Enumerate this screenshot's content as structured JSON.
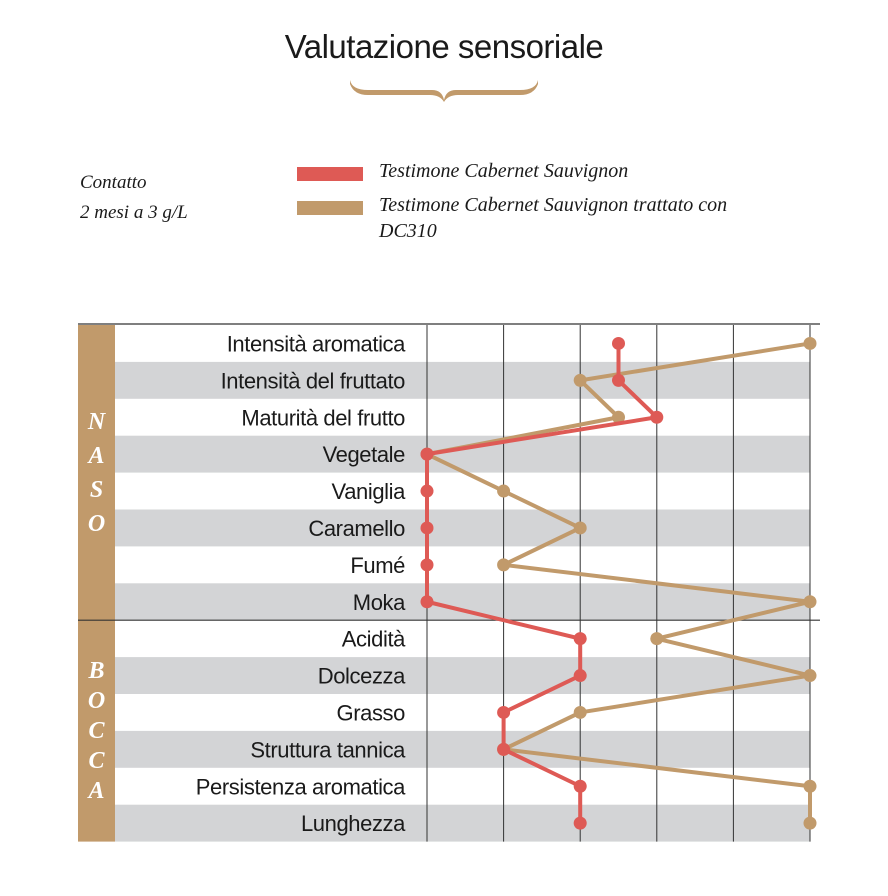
{
  "title": "Valutazione sensoriale",
  "note": [
    "Contatto",
    "2 mesi a 3 g/L"
  ],
  "colors": {
    "control": "#de5a55",
    "treated": "#c19a6b",
    "stripe": "#d3d4d6",
    "side": "#c19a6b"
  },
  "chart_data": {
    "type": "line",
    "orientation": "horizontal",
    "categories": [
      "Intensità aromatica",
      "Intensità del fruttato",
      "Maturità del frutto",
      "Vegetale",
      "Vaniglia",
      "Caramello",
      "Fumé",
      "Moka",
      "Acidità",
      "Dolcezza",
      "Grasso",
      "Struttura tannica",
      "Persistenza aromatica",
      "Lunghezza"
    ],
    "groups": [
      {
        "name": "NASO",
        "count": 8
      },
      {
        "name": "BOCCA",
        "count": 6
      }
    ],
    "xlim": [
      0,
      5
    ],
    "grid": true,
    "legend_position": "top",
    "series": [
      {
        "name": "Testimone Cabernet Sauvignon",
        "color": "#de5a55",
        "values": [
          2.5,
          2.5,
          3,
          0,
          0,
          0,
          0,
          0,
          2,
          2,
          1,
          1,
          2,
          2
        ]
      },
      {
        "name": "Testimone Cabernet Sauvignon trattato con DC310",
        "color": "#c19a6b",
        "values": [
          5,
          2,
          2.5,
          0,
          1,
          2,
          1,
          5,
          3,
          5,
          2,
          1,
          5,
          5
        ]
      }
    ]
  }
}
